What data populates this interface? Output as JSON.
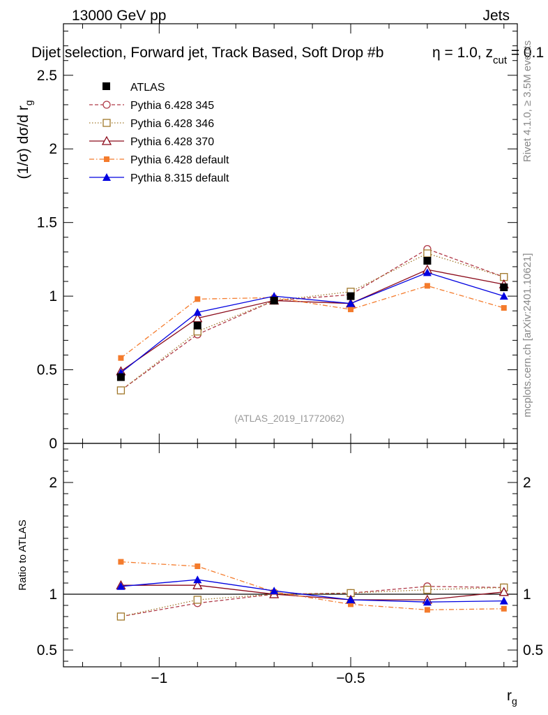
{
  "header": {
    "left": "13000 GeV pp",
    "right": "Jets"
  },
  "title": {
    "main": "Dijet selection, Forward jet, Track Based, Soft Drop #b",
    "beta": "η = 1.0, z",
    "cut_sub": "cut",
    "tail": " = 0.1"
  },
  "side_labels": {
    "rivet": "Rivet 4.1.0, ≥ 3.5M events",
    "mcplots": "mcplots.cern.ch [arXiv:2401.10621]"
  },
  "analysis_label": "(ATLAS_2019_I1772062)",
  "colors": {
    "atlas": "#000000",
    "p345": "#b03a48",
    "p346": "#a0782a",
    "p370": "#8b0a1a",
    "p6def": "#f47b2c",
    "p8def": "#0000e0"
  },
  "chart_data": [
    {
      "type": "line",
      "panel": "main",
      "ylabel": "(1/σ) dσ/d r",
      "ylabel_sub": "g",
      "ylim": [
        0,
        2.85
      ],
      "yticks": [
        {
          "value": 0.5,
          "label": "0.5"
        },
        {
          "value": 1,
          "label": "1"
        },
        {
          "value": 1.5,
          "label": "1.5"
        },
        {
          "value": 2,
          "label": "2"
        },
        {
          "value": 2.5,
          "label": "2.5"
        },
        {
          "value": 0,
          "label": "0"
        }
      ],
      "x": [
        -1.1,
        -0.9,
        -0.7,
        -0.5,
        -0.3,
        -0.1
      ],
      "series": [
        {
          "key": "atlas",
          "name": "ATLAS",
          "values": [
            0.45,
            0.8,
            0.97,
            1.0,
            1.24,
            1.06
          ],
          "style": "data"
        },
        {
          "key": "p345",
          "name": "Pythia 6.428 345",
          "values": [
            0.36,
            0.74,
            0.97,
            1.01,
            1.32,
            1.13
          ],
          "style": "dash",
          "marker": "circle-open"
        },
        {
          "key": "p346",
          "name": "Pythia 6.428 346",
          "values": [
            0.36,
            0.76,
            0.97,
            1.03,
            1.29,
            1.13
          ],
          "style": "dot",
          "marker": "square-open"
        },
        {
          "key": "p370",
          "name": "Pythia 6.428 370",
          "values": [
            0.49,
            0.85,
            0.97,
            0.95,
            1.18,
            1.08
          ],
          "style": "solid",
          "marker": "triangle-open"
        },
        {
          "key": "p6def",
          "name": "Pythia 6.428 default",
          "values": [
            0.58,
            0.98,
            0.99,
            0.91,
            1.07,
            0.92
          ],
          "style": "dashdot",
          "marker": "square-small"
        },
        {
          "key": "p8def",
          "name": "Pythia 8.315 default",
          "values": [
            0.48,
            0.89,
            1.0,
            0.95,
            1.16,
            1.0
          ],
          "style": "solid",
          "marker": "triangle-filled"
        }
      ]
    },
    {
      "type": "line",
      "panel": "ratio",
      "ylabel": "Ratio to ATLAS",
      "ylim": [
        0.35,
        2.35
      ],
      "yticks": [
        {
          "value": 0.5,
          "label": "0.5"
        },
        {
          "value": 1,
          "label": "1"
        },
        {
          "value": 2,
          "label": "2"
        }
      ],
      "xlabel": "r",
      "xlabel_sub": "g",
      "xlim": [
        -1.25,
        -0.065
      ],
      "xticks": [
        {
          "value": -1,
          "label": "−1"
        },
        {
          "value": -0.5,
          "label": "−0.5"
        }
      ],
      "x": [
        -1.1,
        -0.9,
        -0.7,
        -0.5,
        -0.3,
        -0.1
      ],
      "series": [
        {
          "key": "p345",
          "values": [
            0.8,
            0.92,
            1.0,
            1.01,
            1.07,
            1.06
          ]
        },
        {
          "key": "p346",
          "values": [
            0.8,
            0.95,
            1.0,
            1.01,
            1.04,
            1.06
          ]
        },
        {
          "key": "p370",
          "values": [
            1.08,
            1.08,
            1.0,
            0.95,
            0.95,
            1.02
          ]
        },
        {
          "key": "p6def",
          "values": [
            1.29,
            1.25,
            1.02,
            0.91,
            0.86,
            0.87
          ]
        },
        {
          "key": "p8def",
          "values": [
            1.07,
            1.13,
            1.03,
            0.95,
            0.93,
            0.94
          ]
        }
      ]
    }
  ]
}
